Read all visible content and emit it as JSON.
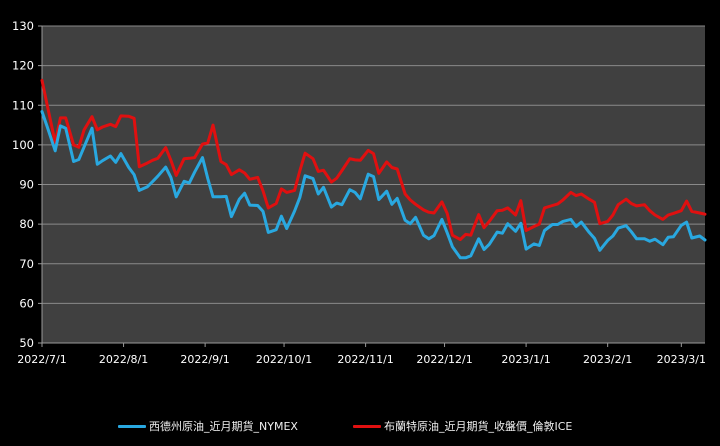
{
  "chart_data": {
    "type": "line",
    "title": "",
    "xlabel": "",
    "ylabel": "",
    "ylim": [
      50,
      130
    ],
    "yticks": [
      50,
      60,
      70,
      80,
      90,
      100,
      110,
      120,
      130
    ],
    "xtick_labels": [
      "2022/7/1",
      "2022/8/1",
      "2022/9/1",
      "2022/10/1",
      "2022/11/1",
      "2022/12/1",
      "2023/1/1",
      "2023/2/1",
      "2023/3/1"
    ],
    "xtick_days": [
      0,
      31,
      62,
      92,
      123,
      153,
      184,
      215,
      243
    ],
    "xlim_days": [
      0,
      252
    ],
    "grid": true,
    "legend_position": "bottom",
    "background": "#000000",
    "plot_background": "#404040",
    "gridline_color": "#8a8a8a",
    "series": [
      {
        "name": "西德州原油_近月期貨_NYMEX",
        "color": "#29a8e0",
        "days": [
          0,
          2,
          5,
          7,
          9,
          12,
          14,
          16,
          19,
          21,
          23,
          26,
          28,
          30,
          33,
          35,
          37,
          40,
          42,
          44,
          47,
          49,
          51,
          54,
          56,
          58,
          61,
          63,
          65,
          68,
          70,
          72,
          75,
          77,
          79,
          82,
          84,
          86,
          89,
          91,
          93,
          96,
          98,
          100,
          103,
          105,
          107,
          110,
          112,
          114,
          117,
          119,
          121,
          124,
          126,
          128,
          131,
          133,
          135,
          138,
          140,
          142,
          145,
          147,
          149,
          152,
          154,
          156,
          159,
          161,
          163,
          166,
          168,
          170,
          173,
          175,
          177,
          180,
          182,
          184,
          187,
          189,
          191,
          194,
          196,
          198,
          201,
          203,
          205,
          208,
          210,
          212,
          215,
          217,
          219,
          222,
          224,
          226,
          229,
          231,
          233,
          236,
          238,
          240,
          243,
          245,
          247,
          250,
          252
        ],
        "values": [
          108.4,
          104.5,
          98.5,
          104.8,
          104.2,
          95.8,
          96.3,
          99.5,
          104.2,
          95.1,
          96.0,
          97.2,
          95.6,
          97.8,
          94.3,
          92.5,
          88.5,
          89.4,
          90.7,
          92.1,
          94.4,
          91.8,
          86.9,
          90.8,
          90.4,
          93.1,
          96.8,
          91.5,
          86.9,
          86.9,
          87.0,
          81.9,
          86.3,
          87.8,
          84.8,
          84.7,
          83.2,
          77.9,
          78.6,
          82.0,
          78.9,
          83.3,
          86.7,
          92.2,
          91.5,
          87.6,
          89.3,
          84.3,
          85.3,
          84.9,
          88.7,
          88.0,
          86.4,
          92.6,
          92.0,
          86.2,
          88.3,
          85.0,
          86.5,
          81.0,
          80.1,
          81.7,
          77.2,
          76.3,
          77.1,
          81.2,
          77.8,
          74.3,
          71.5,
          71.5,
          72.0,
          76.3,
          73.6,
          74.9,
          78.0,
          77.7,
          80.1,
          78.2,
          80.2,
          73.7,
          75.0,
          74.6,
          78.4,
          79.9,
          79.9,
          80.7,
          81.2,
          79.4,
          80.5,
          77.9,
          76.4,
          73.4,
          75.9,
          77.0,
          79.0,
          79.6,
          78.1,
          76.3,
          76.3,
          75.7,
          76.2,
          74.8,
          76.7,
          76.8,
          79.7,
          80.5,
          76.5,
          77.0,
          76.0
        ]
      },
      {
        "name": "布蘭特原油_近月期貨_收盤價_倫敦ICE",
        "color": "#e01010",
        "days": [
          0,
          2,
          5,
          7,
          9,
          12,
          14,
          16,
          19,
          21,
          23,
          26,
          28,
          30,
          33,
          35,
          37,
          40,
          42,
          44,
          47,
          49,
          51,
          54,
          56,
          58,
          61,
          63,
          65,
          68,
          70,
          72,
          75,
          77,
          79,
          82,
          84,
          86,
          89,
          91,
          93,
          96,
          98,
          100,
          103,
          105,
          107,
          110,
          112,
          114,
          117,
          119,
          121,
          124,
          126,
          128,
          131,
          133,
          135,
          138,
          140,
          142,
          145,
          147,
          149,
          152,
          154,
          156,
          159,
          161,
          163,
          166,
          168,
          170,
          173,
          175,
          177,
          180,
          182,
          184,
          187,
          189,
          191,
          194,
          196,
          198,
          201,
          203,
          205,
          208,
          210,
          212,
          215,
          217,
          219,
          222,
          224,
          226,
          229,
          231,
          233,
          236,
          238,
          240,
          243,
          245,
          247,
          250,
          252
        ],
        "values": [
          116.3,
          109.9,
          100.6,
          106.8,
          106.8,
          100.0,
          99.4,
          103.8,
          107.1,
          103.8,
          104.5,
          105.2,
          104.6,
          107.3,
          107.2,
          106.7,
          94.5,
          95.4,
          96.1,
          96.6,
          99.3,
          96.1,
          92.3,
          96.5,
          96.6,
          96.8,
          100.2,
          100.5,
          105.0,
          95.8,
          95.0,
          92.5,
          93.7,
          92.9,
          91.3,
          91.8,
          88.4,
          84.1,
          85.2,
          88.9,
          88.0,
          88.5,
          93.4,
          97.9,
          96.5,
          93.3,
          93.6,
          90.6,
          91.6,
          93.5,
          96.5,
          96.2,
          96.1,
          98.6,
          97.8,
          92.8,
          95.7,
          94.3,
          93.9,
          87.6,
          86.1,
          85.0,
          83.6,
          83.0,
          82.8,
          85.6,
          82.7,
          77.2,
          76.1,
          77.4,
          77.2,
          82.4,
          79.1,
          80.7,
          83.4,
          83.5,
          84.1,
          82.3,
          85.9,
          78.4,
          79.4,
          80.0,
          84.1,
          84.7,
          85.1,
          86.1,
          88.0,
          87.2,
          87.6,
          86.3,
          85.5,
          80.1,
          80.7,
          82.3,
          84.9,
          86.3,
          85.2,
          84.6,
          84.9,
          83.4,
          82.3,
          81.2,
          82.3,
          82.7,
          83.4,
          85.8,
          83.2,
          82.8,
          82.5
        ]
      }
    ]
  },
  "legend": {
    "items": [
      {
        "label": "西德州原油_近月期貨_NYMEX",
        "color": "#29a8e0"
      },
      {
        "label": "布蘭特原油_近月期貨_收盤價_倫敦ICE",
        "color": "#e01010"
      }
    ]
  }
}
